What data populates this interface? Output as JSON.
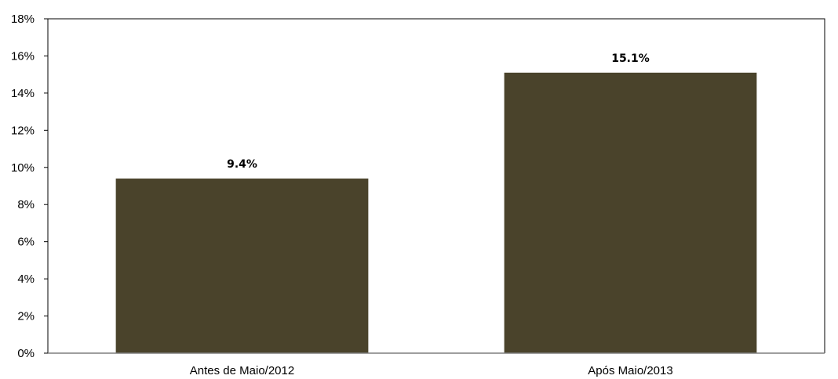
{
  "chart_data": {
    "type": "bar",
    "categories": [
      "Antes de Maio/2012",
      "Após Maio/2013"
    ],
    "values": [
      9.4,
      15.1
    ],
    "data_labels": [
      "9.4%",
      "15.1%"
    ],
    "title": "",
    "xlabel": "",
    "ylabel": "",
    "ylim": [
      0,
      18
    ],
    "y_ticks": [
      0,
      2,
      4,
      6,
      8,
      10,
      12,
      14,
      16,
      18
    ],
    "y_tick_labels": [
      "0%",
      "2%",
      "4%",
      "6%",
      "8%",
      "10%",
      "12%",
      "14%",
      "16%",
      "18%"
    ],
    "grid": false,
    "legend": "none",
    "bar_color": "#4a432b",
    "plot_border_color": "#000000",
    "x_axis_color": "#7f7f7f"
  }
}
